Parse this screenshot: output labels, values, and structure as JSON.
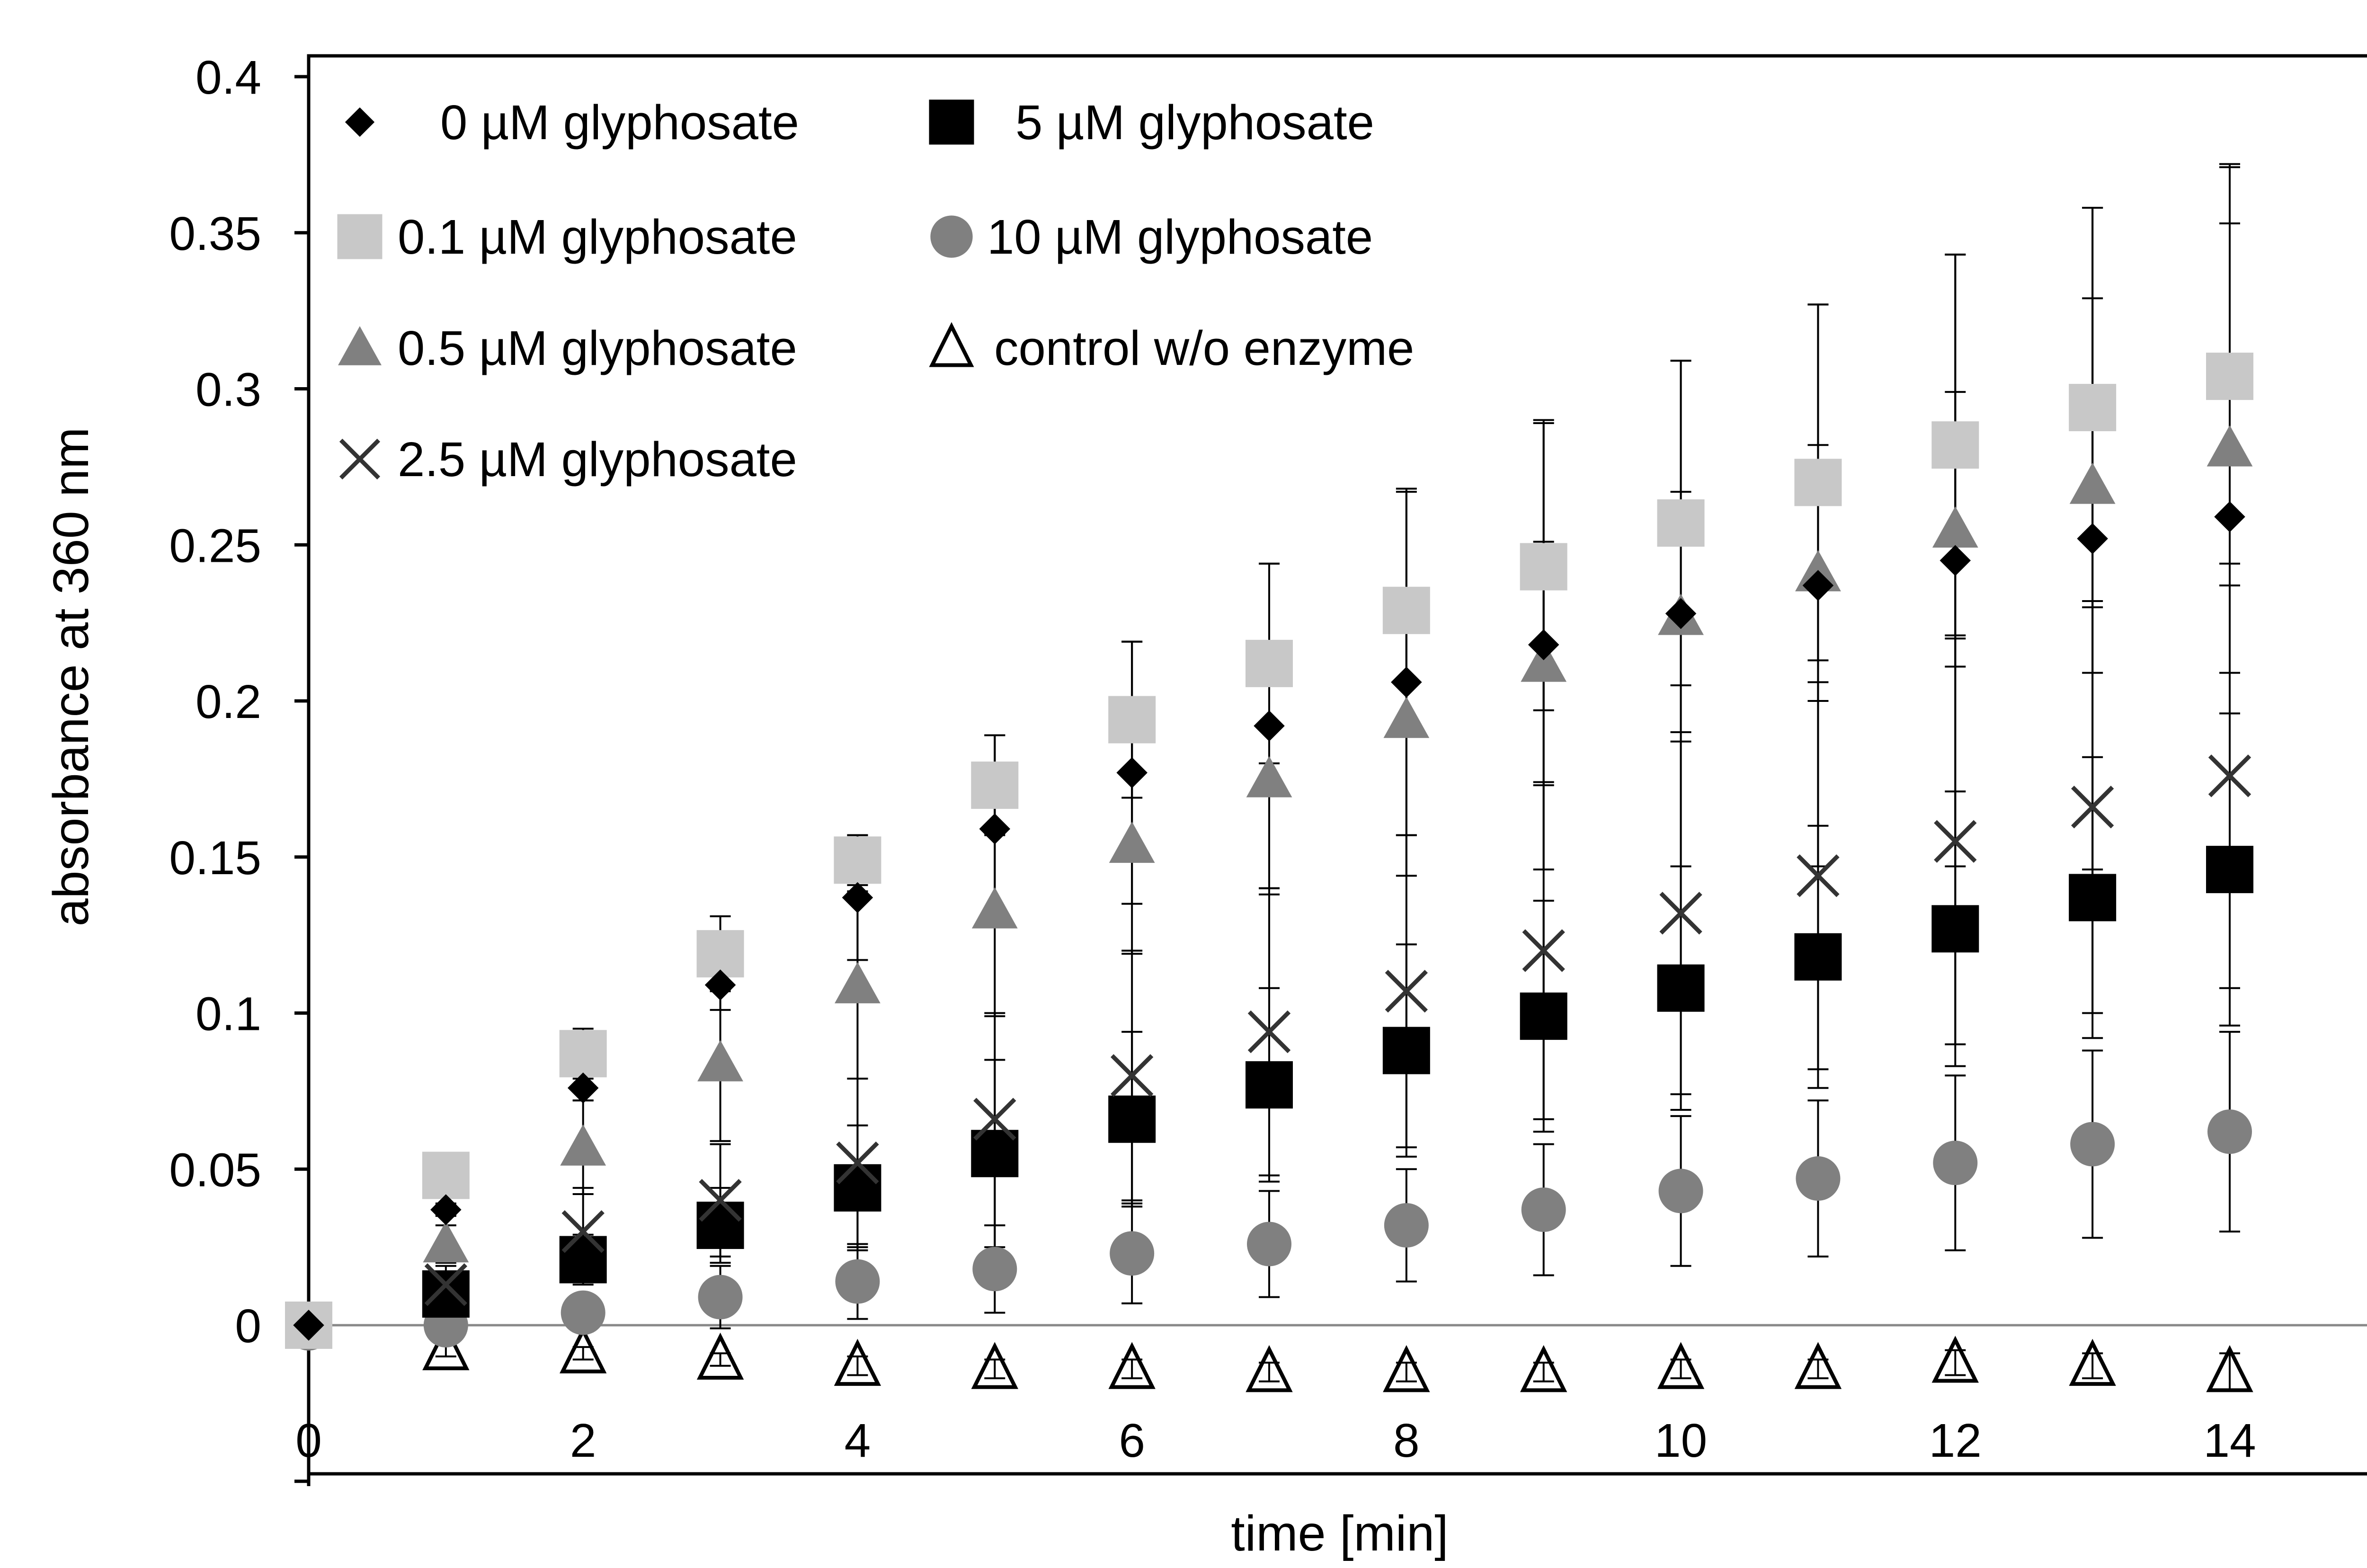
{
  "chart_data": {
    "type": "scatter",
    "xlabel": "time [min]",
    "ylabel": "absorbance at 360 nm",
    "xlim": [
      0,
      15
    ],
    "ylim": [
      -0.05,
      0.41
    ],
    "x_ticks": [
      0,
      2,
      4,
      6,
      8,
      10,
      12,
      14
    ],
    "y_ticks": [
      0,
      0.05,
      0.1,
      0.15,
      0.2,
      0.25,
      0.3,
      0.35,
      0.4
    ],
    "x_tick_labels": [
      "0",
      "2",
      "4",
      "6",
      "8",
      "10",
      "12",
      "14"
    ],
    "y_tick_labels": [
      "0",
      "0.05",
      "0.1",
      "0.15",
      "0.2",
      "0.25",
      "0.3",
      "0.35",
      "0.4"
    ],
    "grid": false,
    "legend_position": "top-left",
    "x": [
      0,
      1,
      2,
      3,
      4,
      5,
      6,
      7,
      8,
      9,
      10,
      11,
      12,
      13,
      14
    ],
    "series": [
      {
        "name": "0 µM glyphosate",
        "marker": "diamond",
        "color": "#000000",
        "values": [
          0,
          0.037,
          0.076,
          0.109,
          0.137,
          0.159,
          0.177,
          0.192,
          0.206,
          0.218,
          0.228,
          0.237,
          0.245,
          0.252,
          0.259
        ],
        "errors": [
          0,
          0.002,
          0.004,
          0.008,
          0.02,
          0.03,
          0.042,
          0.052,
          0.062,
          0.072,
          0.081,
          0.09,
          0.098,
          0.106,
          0.113
        ]
      },
      {
        "name": "0.1 µM glyphosate",
        "marker": "square",
        "color": "#c8c8c8",
        "values": [
          0,
          0.048,
          0.087,
          0.119,
          0.149,
          0.173,
          0.194,
          0.212,
          0.229,
          0.243,
          0.257,
          0.27,
          0.282,
          0.294,
          0.304
        ],
        "errors": [
          0,
          0.004,
          0.008,
          0.012,
          0.008,
          0.016,
          0.025,
          0.032,
          0.038,
          0.046,
          0.052,
          0.057,
          0.061,
          0.064,
          0.067
        ]
      },
      {
        "name": "0.5 µM glyphosate",
        "marker": "triangle",
        "color": "#808080",
        "values": [
          0,
          0.026,
          0.057,
          0.084,
          0.109,
          0.133,
          0.154,
          0.175,
          0.194,
          0.212,
          0.227,
          0.241,
          0.255,
          0.269,
          0.281
        ],
        "errors": [
          0,
          0.006,
          0.015,
          0.025,
          0.03,
          0.034,
          0.035,
          0.037,
          0.037,
          0.039,
          0.04,
          0.041,
          0.044,
          0.06,
          0.072
        ]
      },
      {
        "name": "2.5 µM glyphosate",
        "marker": "x",
        "color": "#333333",
        "values": [
          0,
          0.013,
          0.03,
          0.04,
          0.052,
          0.066,
          0.08,
          0.094,
          0.107,
          0.12,
          0.132,
          0.144,
          0.155,
          0.166,
          0.176
        ],
        "errors": [
          0,
          0.006,
          0.014,
          0.018,
          0.027,
          0.034,
          0.04,
          0.046,
          0.05,
          0.054,
          0.058,
          0.062,
          0.065,
          0.066,
          0.068
        ]
      },
      {
        "name": "5 µM glyphosate",
        "marker": "square",
        "color": "#000000",
        "values": [
          0,
          0.01,
          0.021,
          0.032,
          0.044,
          0.055,
          0.066,
          0.077,
          0.088,
          0.099,
          0.108,
          0.118,
          0.127,
          0.137,
          0.146
        ],
        "errors": [
          0,
          0.004,
          0.008,
          0.012,
          0.02,
          0.03,
          0.028,
          0.031,
          0.034,
          0.037,
          0.039,
          0.042,
          0.044,
          0.045,
          0.05
        ]
      },
      {
        "name": "10 µM glyphosate",
        "marker": "circle",
        "color": "#808080",
        "values": [
          -0.001,
          0,
          0.004,
          0.009,
          0.014,
          0.018,
          0.023,
          0.026,
          0.032,
          0.037,
          0.043,
          0.047,
          0.052,
          0.058,
          0.062
        ],
        "errors": [
          0,
          0.002,
          0.006,
          0.01,
          0.012,
          0.014,
          0.016,
          0.017,
          0.018,
          0.021,
          0.024,
          0.025,
          0.028,
          0.03,
          0.032
        ]
      },
      {
        "name": "control w/o enzyme",
        "marker": "triangle-open",
        "color": "#000000",
        "values": [
          0,
          -0.008,
          -0.009,
          -0.011,
          -0.013,
          -0.014,
          -0.014,
          -0.015,
          -0.015,
          -0.015,
          -0.014,
          -0.014,
          -0.012,
          -0.013,
          -0.015
        ],
        "errors": [
          0,
          0.002,
          0.002,
          0.002,
          0.003,
          0.003,
          0.003,
          0.003,
          0.003,
          0.003,
          0.003,
          0.003,
          0.004,
          0.004,
          0.006
        ]
      }
    ]
  }
}
